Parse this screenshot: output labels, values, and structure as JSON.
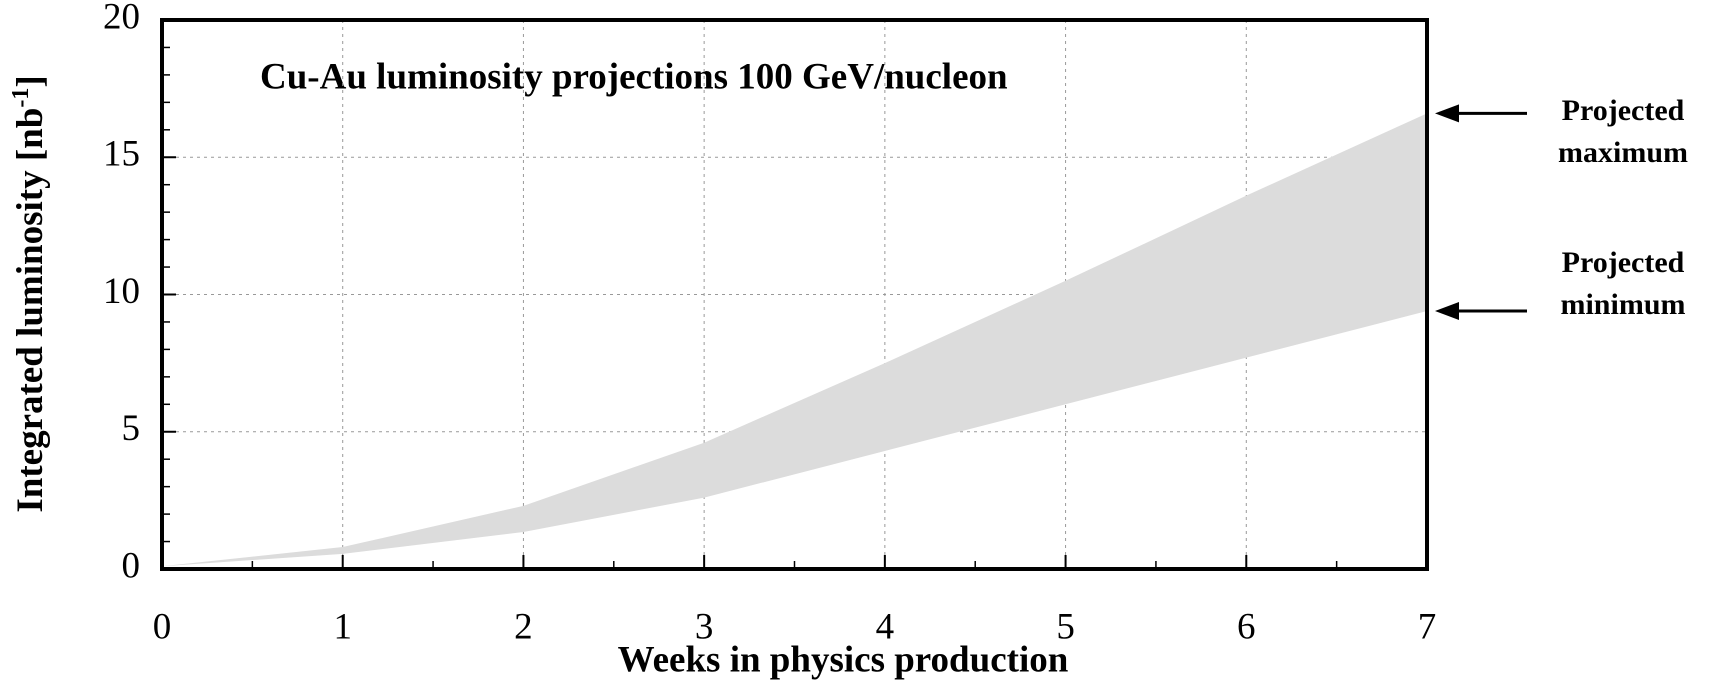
{
  "chart_data": {
    "type": "range-area",
    "title": "Cu-Au luminosity projections 100 GeV/nucleon",
    "xlabel": "Weeks in physics production",
    "ylabel": [
      "Integrated luminosity [nb",
      "-1",
      "]"
    ],
    "x": [
      0,
      1,
      2,
      3,
      4,
      5,
      6,
      7
    ],
    "series": [
      {
        "color": "#dcdcdc",
        "values": [
          0.1,
          0.8,
          2.3,
          4.6,
          7.5,
          10.5,
          13.6,
          16.6
        ]
      },
      {
        "color": "#dcdcdc",
        "values": [
          0.1,
          0.55,
          1.35,
          2.6,
          4.3,
          6.0,
          7.7,
          9.4
        ]
      }
    ],
    "annotations": [
      {
        "text": [
          "Projected",
          "maximum"
        ]
      },
      {
        "text": [
          "Projected",
          "minimum"
        ]
      }
    ],
    "xlim": [
      0,
      7
    ],
    "xticks": [
      0,
      1,
      2,
      3,
      4,
      5,
      6,
      7
    ],
    "ylim": [
      0,
      20
    ],
    "yticks": [
      0,
      5,
      10,
      15,
      20
    ],
    "grid": true
  }
}
